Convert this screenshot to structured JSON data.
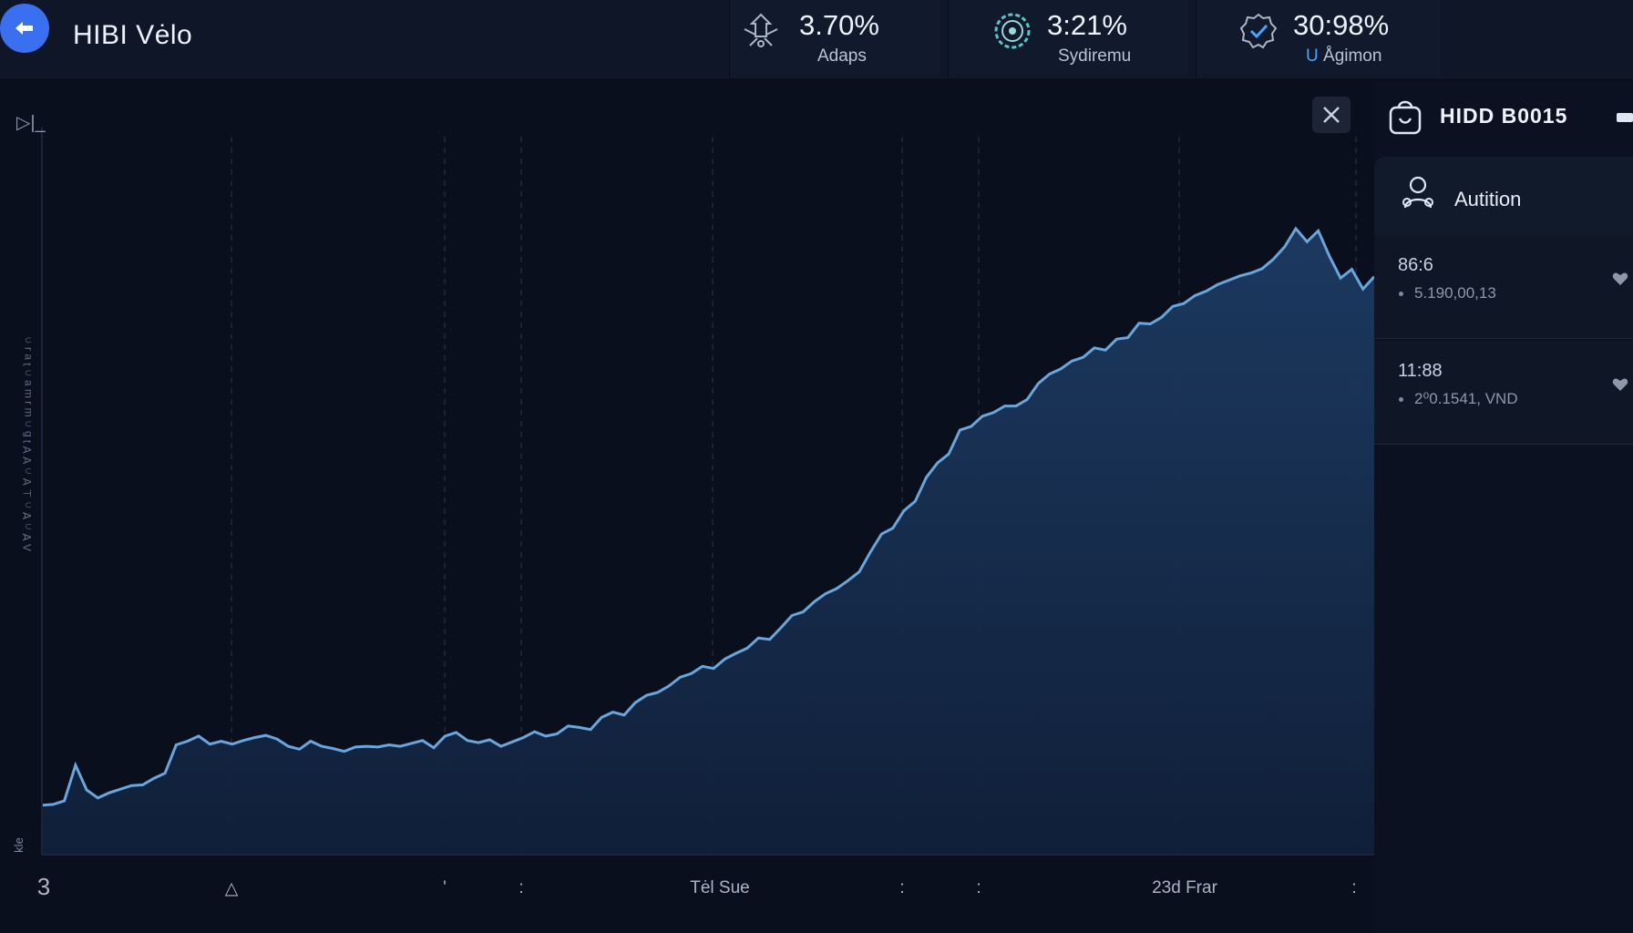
{
  "header": {
    "app_title": "HIBI Vėlo",
    "stats": [
      {
        "value": "3.70%",
        "label": "Adaps",
        "icon": "drone-icon"
      },
      {
        "value": "3:21%",
        "label": "Sydiremu",
        "icon": "gear-badge-icon"
      },
      {
        "value": "30:98%",
        "label_accent": "U",
        "label": "Ågimon",
        "icon": "verified-check-icon"
      }
    ]
  },
  "chart": {
    "control_label": "▷|_",
    "yaxis_label": "Ʌ Ɐ ∩ Ɐ ∩ ⊥ ∀ ∩ ∀ ∀ ʇ ƃ ∩ ɯ ɹ ɯ ɐ ∩ ʇ ɐ ɹ ∩",
    "corner_label": "kle",
    "x_ticks": [
      "3",
      "△",
      "'",
      ":",
      "Tėl Sue",
      ":",
      ":",
      "23d Frar",
      ":"
    ]
  },
  "chart_data": {
    "type": "area",
    "x": [
      0,
      1,
      2,
      3,
      4,
      5,
      6,
      7,
      8,
      9,
      10,
      11,
      12,
      13,
      14,
      15,
      16,
      17,
      18,
      19,
      20,
      21,
      22,
      23,
      24,
      25,
      26,
      27,
      28,
      29,
      30,
      31,
      32,
      33,
      34,
      35,
      36,
      37,
      38,
      39,
      40,
      41,
      42,
      43,
      44,
      45,
      46,
      47,
      48,
      49,
      50,
      51,
      52,
      53,
      54,
      55,
      56,
      57,
      58,
      59,
      60,
      61,
      62,
      63,
      64,
      65,
      66,
      67,
      68,
      69,
      70,
      71,
      72,
      73,
      74,
      75,
      76,
      77,
      78,
      79,
      80,
      81,
      82,
      83,
      84,
      85,
      86,
      87,
      88,
      89,
      90,
      91,
      92,
      93,
      94,
      95,
      96,
      97,
      98,
      99,
      100,
      101,
      102,
      103,
      104,
      105,
      106,
      107,
      108,
      109,
      110,
      111,
      112,
      113,
      114,
      115,
      116,
      117,
      118,
      119
    ],
    "values": [
      6.8,
      6.9,
      7.4,
      12.3,
      8.9,
      7.8,
      8.5,
      9.0,
      9.5,
      9.6,
      10.5,
      11.2,
      15.1,
      15.6,
      16.3,
      15.2,
      15.6,
      15.2,
      15.7,
      16.1,
      16.4,
      15.9,
      14.9,
      14.5,
      15.6,
      14.9,
      14.6,
      14.2,
      14.8,
      14.9,
      14.8,
      15.1,
      14.9,
      15.3,
      15.7,
      14.7,
      16.3,
      16.8,
      15.7,
      15.4,
      15.8,
      14.9,
      15.5,
      16.1,
      16.9,
      16.3,
      16.6,
      17.7,
      17.5,
      17.2,
      18.9,
      19.6,
      19.2,
      20.9,
      21.9,
      22.3,
      23.2,
      24.4,
      24.9,
      25.9,
      25.6,
      26.9,
      27.7,
      28.4,
      29.8,
      29.6,
      31.2,
      32.9,
      33.4,
      34.8,
      35.9,
      36.6,
      37.7,
      38.9,
      41.6,
      44.1,
      44.9,
      47.3,
      48.6,
      51.9,
      53.9,
      55.1,
      58.4,
      58.9,
      60.3,
      60.8,
      61.7,
      61.7,
      62.6,
      64.8,
      66.1,
      66.8,
      67.9,
      68.4,
      69.7,
      69.4,
      70.9,
      71.1,
      73.1,
      73.0,
      73.9,
      75.4,
      75.8,
      76.9,
      77.5,
      78.4,
      79.0,
      79.6,
      80.0,
      80.6,
      81.9,
      83.6,
      86.1,
      84.3,
      85.8,
      82.3,
      79.3,
      80.5,
      77.8,
      79.5
    ],
    "ylim": [
      0,
      100
    ],
    "grid": true,
    "color": "#6aa6de",
    "fill": "#173051"
  },
  "panel": {
    "title": "HIDD B0015",
    "section_title": "Autition",
    "items": [
      {
        "title": "86:6",
        "sub": "5.190,00,13"
      },
      {
        "title": "11:88",
        "sub": "2⁰0.1541, VND"
      }
    ]
  },
  "colors": {
    "accent": "#3a6ff0",
    "line": "#6aa6de",
    "background": "#0a0f1d"
  }
}
